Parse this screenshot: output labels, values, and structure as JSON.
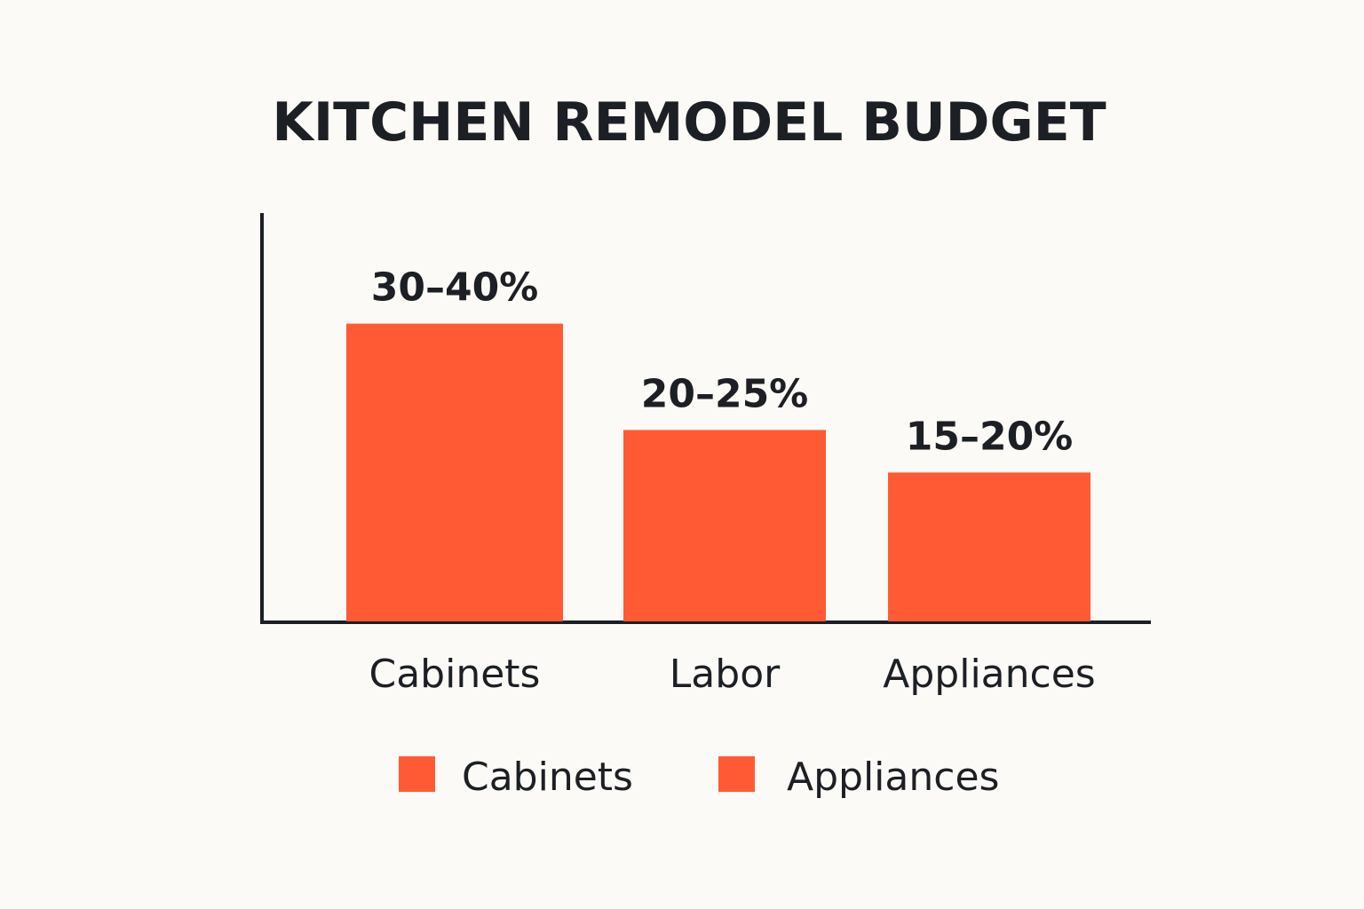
{
  "chart_data": {
    "type": "bar",
    "title": "KITCHEN REMODEL BUDGET",
    "xlabel": "",
    "ylabel": "",
    "categories": [
      "Cabinets",
      "Labor",
      "Appliances"
    ],
    "values": [
      35,
      22.5,
      17.5
    ],
    "value_labels": [
      "30–40%",
      "20–25%",
      "15–20%"
    ],
    "ylim": [
      0,
      48
    ],
    "grid": false,
    "bar_color": "#ff5a33",
    "axis_color": "#1c1f24",
    "legend": {
      "placement": "bottom",
      "entries": [
        {
          "label": "Cabinets",
          "color": "#ff5a33"
        },
        {
          "label": "Appliances",
          "color": "#ff5a33"
        }
      ]
    }
  }
}
